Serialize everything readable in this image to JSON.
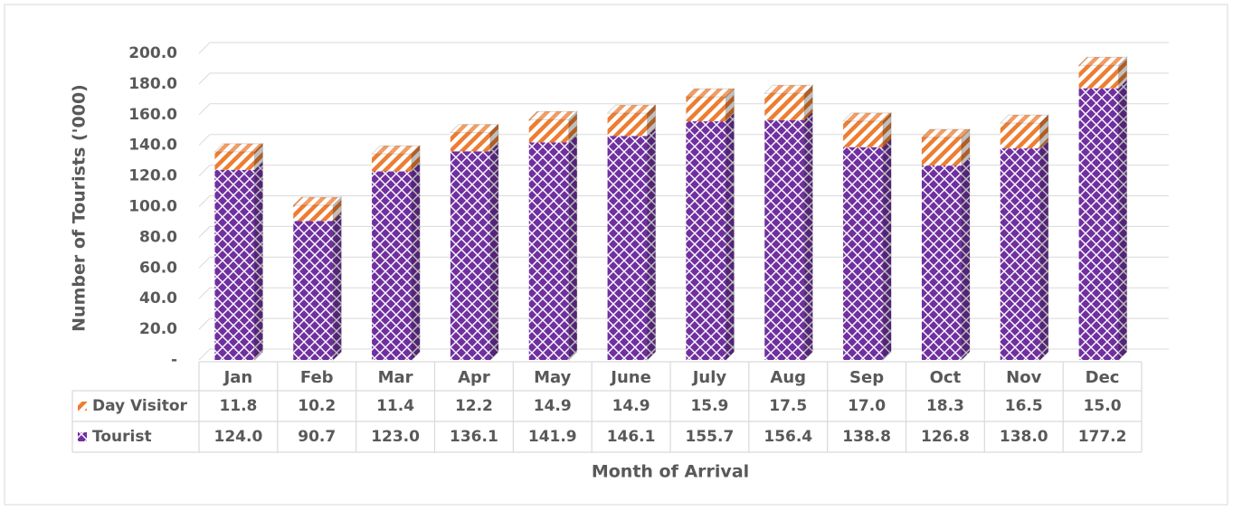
{
  "chart_data": {
    "type": "bar",
    "stacked": true,
    "y_label": "Number of Tourists ('000)",
    "x_label": "Month of Arrival",
    "categories": [
      "Jan",
      "Feb",
      "Mar",
      "Apr",
      "May",
      "June",
      "July",
      "Aug",
      "Sep",
      "Oct",
      "Nov",
      "Dec"
    ],
    "series": [
      {
        "name": "Tourist",
        "color": "#7030a0",
        "values": [
          124.0,
          90.7,
          123.0,
          136.1,
          141.9,
          146.1,
          155.7,
          156.4,
          138.8,
          126.8,
          138.0,
          177.2
        ],
        "value_labels": [
          "124.0",
          "90.7",
          "123.0",
          "136.1",
          "141.9",
          "146.1",
          "155.7",
          "156.4",
          "138.8",
          "126.8",
          "138.0",
          "177.2"
        ]
      },
      {
        "name": "Day Visitor",
        "color": "#ed7d31",
        "values": [
          11.8,
          10.2,
          11.4,
          12.2,
          14.9,
          14.9,
          15.9,
          17.5,
          17.0,
          18.3,
          16.5,
          15.0
        ],
        "value_labels": [
          "11.8",
          "10.2",
          "11.4",
          "12.2",
          "14.9",
          "14.9",
          "15.9",
          "17.5",
          "17.0",
          "18.3",
          "16.5",
          "15.0"
        ]
      }
    ],
    "ylim": [
      0,
      200
    ],
    "yticks": [
      {
        "value": 0,
        "label": "-"
      },
      {
        "value": 20,
        "label": "20.0"
      },
      {
        "value": 40,
        "label": "40.0"
      },
      {
        "value": 60,
        "label": "60.0"
      },
      {
        "value": 80,
        "label": "80.0"
      },
      {
        "value": 100,
        "label": "100.0"
      },
      {
        "value": 120,
        "label": "120.0"
      },
      {
        "value": 140,
        "label": "140.0"
      },
      {
        "value": 160,
        "label": "160.0"
      },
      {
        "value": 180,
        "label": "180.0"
      },
      {
        "value": 200,
        "label": "200.0"
      }
    ],
    "grid": true
  }
}
